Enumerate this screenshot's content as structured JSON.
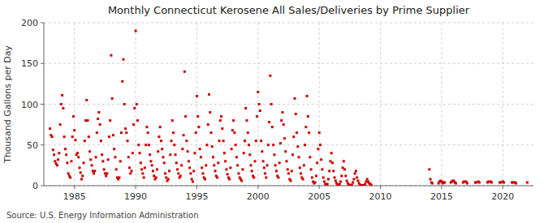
{
  "chart_data": {
    "type": "scatter",
    "title": "Monthly Connecticut Kerosene All Sales/Deliveries by Prime Supplier",
    "y_label": "Thousand Gallons per Day",
    "source": "Source: U.S. Energy Information Administration",
    "color": "#cc0000",
    "marker": "square",
    "grid": true,
    "xlim": [
      1982.5,
      2022.5
    ],
    "ylim": [
      0,
      200
    ],
    "xticks": [
      1985,
      1990,
      1995,
      2000,
      2005,
      2010,
      2015,
      2020
    ],
    "yticks": [
      0,
      50,
      100,
      150,
      200
    ],
    "x": [
      1983,
      1983.0833333333333,
      1983.1666666666667,
      1983.25,
      1983.3333333333333,
      1983.4166666666667,
      1983.5,
      1983.5833333333333,
      1983.6666666666667,
      1983.75,
      1983.8333333333333,
      1983.9166666666667,
      1984,
      1984.0833333333333,
      1984.1666666666667,
      1984.25,
      1984.3333333333333,
      1984.4166666666667,
      1984.5,
      1984.5833333333333,
      1984.6666666666667,
      1984.75,
      1984.8333333333333,
      1984.9166666666667,
      1985,
      1985.0833333333333,
      1985.1666666666667,
      1985.25,
      1985.3333333333333,
      1985.4166666666667,
      1985.5,
      1985.5833333333333,
      1985.6666666666667,
      1985.75,
      1985.8333333333333,
      1985.9166666666667,
      1986,
      1986.0833333333333,
      1986.1666666666667,
      1986.25,
      1986.3333333333333,
      1986.4166666666667,
      1986.5,
      1986.5833333333333,
      1986.6666666666667,
      1986.75,
      1986.8333333333333,
      1986.9166666666667,
      1987,
      1987.0833333333333,
      1987.1666666666667,
      1987.25,
      1987.3333333333333,
      1987.4166666666667,
      1987.5,
      1987.5833333333333,
      1987.6666666666667,
      1987.75,
      1987.8333333333333,
      1987.9166666666667,
      1988,
      1988.0833333333333,
      1988.1666666666667,
      1988.25,
      1988.3333333333333,
      1988.4166666666667,
      1988.5,
      1988.5833333333333,
      1988.6666666666667,
      1988.75,
      1988.8333333333333,
      1988.9166666666667,
      1989,
      1989.0833333333333,
      1989.1666666666667,
      1989.25,
      1989.3333333333333,
      1989.4166666666667,
      1989.5,
      1989.5833333333333,
      1989.6666666666667,
      1989.75,
      1989.8333333333333,
      1989.9166666666667,
      1990,
      1990.0833333333333,
      1990.1666666666667,
      1990.25,
      1990.3333333333333,
      1990.4166666666667,
      1990.5,
      1990.5833333333333,
      1990.6666666666667,
      1990.75,
      1990.8333333333333,
      1990.9166666666667,
      1991,
      1991.0833333333333,
      1991.1666666666667,
      1991.25,
      1991.3333333333333,
      1991.4166666666667,
      1991.5,
      1991.5833333333333,
      1991.6666666666667,
      1991.75,
      1991.8333333333333,
      1991.9166666666667,
      1992,
      1992.0833333333333,
      1992.1666666666667,
      1992.25,
      1992.3333333333333,
      1992.4166666666667,
      1992.5,
      1992.5833333333333,
      1992.6666666666667,
      1992.75,
      1992.8333333333333,
      1992.9166666666667,
      1993,
      1993.0833333333333,
      1993.1666666666667,
      1993.25,
      1993.3333333333333,
      1993.4166666666667,
      1993.5,
      1993.5833333333333,
      1993.6666666666667,
      1993.75,
      1993.8333333333333,
      1993.9166666666667,
      1994,
      1994.0833333333333,
      1994.1666666666667,
      1994.25,
      1994.3333333333333,
      1994.4166666666667,
      1994.5,
      1994.5833333333333,
      1994.6666666666667,
      1994.75,
      1994.8333333333333,
      1994.9166666666667,
      1995,
      1995.0833333333333,
      1995.1666666666667,
      1995.25,
      1995.3333333333333,
      1995.4166666666667,
      1995.5,
      1995.5833333333333,
      1995.6666666666667,
      1995.75,
      1995.8333333333333,
      1995.9166666666667,
      1996,
      1996.0833333333333,
      1996.1666666666667,
      1996.25,
      1996.3333333333333,
      1996.4166666666667,
      1996.5,
      1996.5833333333333,
      1996.6666666666667,
      1996.75,
      1996.8333333333333,
      1996.9166666666667,
      1997,
      1997.0833333333333,
      1997.1666666666667,
      1997.25,
      1997.3333333333333,
      1997.4166666666667,
      1997.5,
      1997.5833333333333,
      1997.6666666666667,
      1997.75,
      1997.8333333333333,
      1997.9166666666667,
      1998,
      1998.0833333333333,
      1998.1666666666667,
      1998.25,
      1998.3333333333333,
      1998.4166666666667,
      1998.5,
      1998.5833333333333,
      1998.6666666666667,
      1998.75,
      1998.8333333333333,
      1998.9166666666667,
      1999,
      1999.0833333333333,
      1999.1666666666667,
      1999.25,
      1999.3333333333333,
      1999.4166666666667,
      1999.5,
      1999.5833333333333,
      1999.6666666666667,
      1999.75,
      1999.8333333333333,
      1999.9166666666667,
      2000,
      2000.0833333333333,
      2000.1666666666667,
      2000.25,
      2000.3333333333333,
      2000.4166666666667,
      2000.5,
      2000.5833333333333,
      2000.6666666666667,
      2000.75,
      2000.8333333333333,
      2000.9166666666667,
      2001,
      2001.0833333333333,
      2001.1666666666667,
      2001.25,
      2001.3333333333333,
      2001.4166666666667,
      2001.5,
      2001.5833333333333,
      2001.6666666666667,
      2001.75,
      2001.8333333333333,
      2001.9166666666667,
      2002,
      2002.0833333333333,
      2002.1666666666667,
      2002.25,
      2002.3333333333333,
      2002.4166666666667,
      2002.5,
      2002.5833333333333,
      2002.6666666666667,
      2002.75,
      2002.8333333333333,
      2002.9166666666667,
      2003,
      2003.0833333333333,
      2003.1666666666667,
      2003.25,
      2003.3333333333333,
      2003.4166666666667,
      2003.5,
      2003.5833333333333,
      2003.6666666666667,
      2003.75,
      2003.8333333333333,
      2003.9166666666667,
      2004,
      2004.0833333333333,
      2004.1666666666667,
      2004.25,
      2004.3333333333333,
      2004.4166666666667,
      2004.5,
      2004.5833333333333,
      2004.6666666666667,
      2004.75,
      2004.8333333333333,
      2004.9166666666667,
      2005,
      2005.0833333333333,
      2005.1666666666667,
      2005.25,
      2005.3333333333333,
      2005.4166666666667,
      2005.5,
      2005.5833333333333,
      2005.6666666666667,
      2005.75,
      2005.8333333333333,
      2005.9166666666667,
      2006,
      2006.0833333333333,
      2006.1666666666667,
      2006.25,
      2006.3333333333333,
      2006.4166666666667,
      2006.5,
      2006.5833333333333,
      2006.6666666666667,
      2006.75,
      2006.8333333333333,
      2006.9166666666667,
      2007,
      2007.0833333333333,
      2007.1666666666667,
      2007.25,
      2007.3333333333333,
      2007.4166666666667,
      2007.5,
      2007.5833333333333,
      2007.6666666666667,
      2007.75,
      2007.8333333333333,
      2007.9166666666667,
      2008,
      2008.0833333333333,
      2008.1666666666667,
      2008.25,
      2008.3333333333333,
      2008.4166666666667,
      2008.5,
      2008.5833333333333,
      2008.6666666666667,
      2008.75,
      2008.8333333333333,
      2008.9166666666667,
      2009,
      2009.0833333333333,
      2009.1666666666667,
      2009.25,
      2014,
      2014.0833333333333,
      2014.1666666666667,
      2014.25,
      2014.75,
      2014.8333333333333,
      2014.9166666666667,
      2015,
      2015.0833333333333,
      2015.1666666666667,
      2015.25,
      2015.75,
      2015.8333333333333,
      2015.9166666666667,
      2016,
      2016.0833333333333,
      2016.1666666666667,
      2016.75,
      2016.8333333333333,
      2017,
      2017.0833333333333,
      2017.75,
      2017.8333333333333,
      2018,
      2018.0833333333333,
      2018.75,
      2018.8333333333333,
      2019,
      2019.0833333333333,
      2019.75,
      2019.8333333333333,
      2020,
      2020.0833333333333,
      2020.75,
      2020.8333333333333,
      2021,
      2021.0833333333333,
      2022
    ],
    "values": [
      70,
      62,
      60,
      44,
      38,
      30,
      27,
      25,
      32,
      40,
      75,
      100,
      111,
      95,
      60,
      45,
      38,
      28,
      15,
      12,
      10,
      30,
      60,
      85,
      68,
      56,
      38,
      40,
      35,
      22,
      16,
      8,
      12,
      28,
      55,
      80,
      105,
      80,
      60,
      42,
      32,
      25,
      18,
      15,
      18,
      35,
      65,
      82,
      90,
      75,
      55,
      38,
      30,
      20,
      15,
      12,
      15,
      32,
      60,
      80,
      160,
      107,
      62,
      45,
      35,
      20,
      10,
      8,
      10,
      30,
      65,
      128,
      155,
      100,
      70,
      65,
      55,
      35,
      22,
      15,
      18,
      40,
      75,
      95,
      190,
      100,
      80,
      50,
      40,
      28,
      20,
      15,
      10,
      22,
      50,
      72,
      65,
      50,
      38,
      30,
      25,
      18,
      12,
      8,
      10,
      20,
      42,
      60,
      72,
      55,
      45,
      35,
      28,
      15,
      10,
      6,
      8,
      18,
      38,
      55,
      80,
      65,
      50,
      38,
      28,
      20,
      15,
      10,
      12,
      25,
      45,
      62,
      140,
      85,
      55,
      42,
      30,
      22,
      15,
      8,
      5,
      18,
      40,
      65,
      110,
      85,
      72,
      45,
      35,
      22,
      15,
      10,
      8,
      25,
      50,
      75,
      112,
      90,
      65,
      48,
      35,
      25,
      18,
      12,
      10,
      28,
      55,
      80,
      85,
      70,
      55,
      40,
      30,
      20,
      14,
      10,
      8,
      22,
      45,
      68,
      80,
      65,
      50,
      35,
      25,
      15,
      10,
      8,
      6,
      20,
      40,
      55,
      95,
      80,
      65,
      50,
      38,
      25,
      18,
      12,
      10,
      30,
      55,
      85,
      115,
      100,
      92,
      55,
      42,
      30,
      22,
      15,
      10,
      25,
      50,
      78,
      135,
      100,
      72,
      50,
      38,
      25,
      18,
      12,
      10,
      28,
      52,
      80,
      90,
      75,
      58,
      42,
      30,
      20,
      15,
      8,
      6,
      18,
      38,
      60,
      107,
      88,
      65,
      48,
      35,
      22,
      15,
      10,
      8,
      25,
      50,
      72,
      110,
      85,
      65,
      35,
      20,
      10,
      5,
      3,
      4,
      12,
      28,
      45,
      65,
      50,
      32,
      20,
      10,
      5,
      2,
      1,
      2,
      8,
      18,
      30,
      40,
      28,
      18,
      10,
      6,
      3,
      1,
      1,
      2,
      5,
      12,
      22,
      30,
      20,
      12,
      6,
      3,
      1,
      1,
      0.5,
      1,
      4,
      8,
      15,
      18,
      10,
      6,
      3,
      1,
      0.5,
      0.5,
      0.3,
      0.5,
      2,
      5,
      8,
      5,
      3,
      2,
      1,
      20,
      8,
      4,
      3,
      3,
      5,
      6,
      5,
      3,
      4,
      4,
      4,
      5,
      6,
      6,
      4,
      3,
      4,
      5,
      5,
      3,
      4,
      4,
      5,
      4,
      4,
      5,
      5,
      4,
      4,
      4,
      5,
      4,
      4,
      4,
      4,
      3,
      4
    ]
  }
}
